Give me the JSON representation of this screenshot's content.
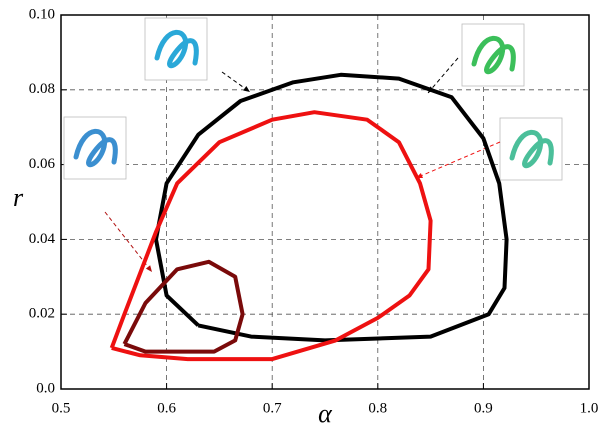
{
  "chart_data": {
    "type": "line",
    "x_label": "α",
    "y_label": "r",
    "xlim": [
      0.5,
      1.0
    ],
    "xticks": [
      0.5,
      0.6,
      0.7,
      0.8,
      0.9,
      {
        "value": 1.0,
        "label": "1.0"
      }
    ],
    "ylim": [
      0,
      0.1
    ],
    "yticks": [
      {
        "value": 0,
        "label": "0.0"
      },
      0.02,
      0.04,
      0.06,
      0.08,
      {
        "value": 0.1,
        "label": "0.10"
      }
    ],
    "grid": true,
    "series": [
      {
        "color": "#000000",
        "x": [
          0.63,
          0.6,
          0.59,
          0.6,
          0.63,
          0.67,
          0.72,
          0.765,
          0.82,
          0.87,
          0.9,
          0.915,
          0.922,
          0.92,
          0.905,
          0.85,
          0.75,
          0.68,
          0.63
        ],
        "values": [
          0.017,
          0.025,
          0.04,
          0.055,
          0.068,
          0.077,
          0.082,
          0.084,
          0.083,
          0.078,
          0.067,
          0.055,
          0.04,
          0.027,
          0.02,
          0.014,
          0.013,
          0.014,
          0.017
        ]
      },
      {
        "color": "#ee1111",
        "x": [
          0.548,
          0.56,
          0.59,
          0.61,
          0.65,
          0.7,
          0.74,
          0.79,
          0.82,
          0.84,
          0.85,
          0.848,
          0.83,
          0.8,
          0.76,
          0.7,
          0.62,
          0.575,
          0.548
        ],
        "values": [
          0.011,
          0.02,
          0.042,
          0.055,
          0.066,
          0.072,
          0.074,
          0.072,
          0.066,
          0.055,
          0.045,
          0.032,
          0.025,
          0.019,
          0.013,
          0.008,
          0.008,
          0.009,
          0.011
        ]
      },
      {
        "color": "#7a0a0a",
        "x": [
          0.56,
          0.58,
          0.61,
          0.64,
          0.665,
          0.672,
          0.665,
          0.645,
          0.58,
          0.56
        ],
        "values": [
          0.012,
          0.023,
          0.032,
          0.034,
          0.03,
          0.02,
          0.013,
          0.01,
          0.01,
          0.012
        ]
      }
    ]
  }
}
